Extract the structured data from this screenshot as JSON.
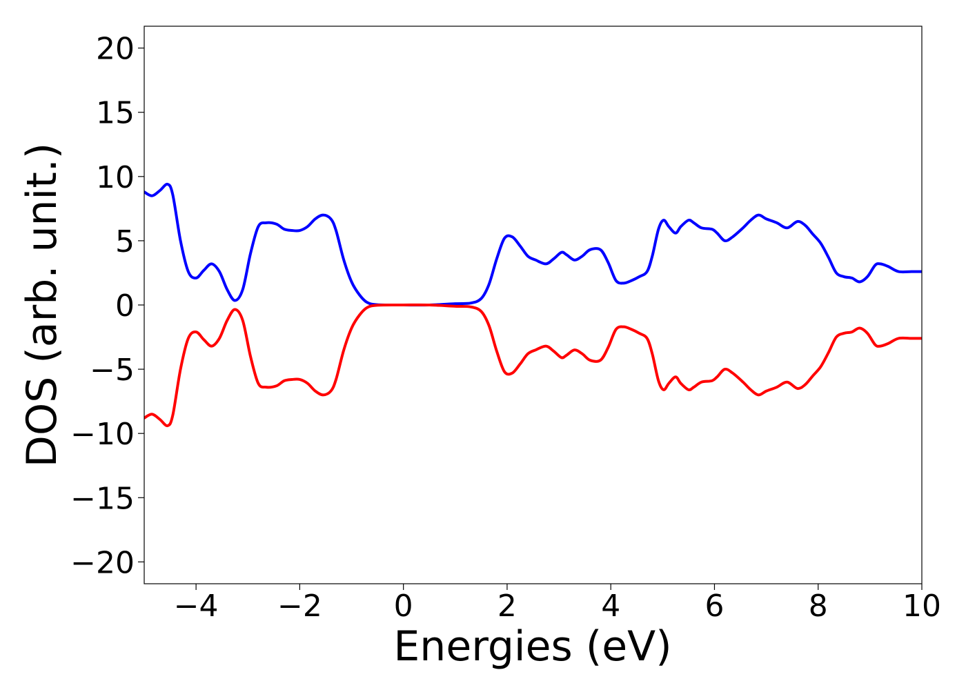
{
  "chart_data": {
    "type": "line",
    "title": "",
    "xlabel": "Energies (eV)",
    "ylabel": "DOS (arb. unit.)",
    "xlim": [
      -5,
      10
    ],
    "ylim": [
      -21.7,
      21.7
    ],
    "xticks": [
      -4,
      -2,
      0,
      2,
      4,
      6,
      8,
      10
    ],
    "yticks": [
      -20,
      -15,
      -10,
      -5,
      0,
      5,
      10,
      15,
      20
    ],
    "xtick_labels": [
      "−4",
      "−2",
      "0",
      "2",
      "4",
      "6",
      "8",
      "10"
    ],
    "ytick_labels": [
      "−20",
      "−15",
      "−10",
      "−5",
      "0",
      "5",
      "10",
      "15",
      "20"
    ],
    "grid": false,
    "legend": "none",
    "series": [
      {
        "color": "#0000ff",
        "points": [
          [
            -5.0,
            8.8
          ],
          [
            -4.85,
            8.5
          ],
          [
            -4.7,
            8.9
          ],
          [
            -4.55,
            9.4
          ],
          [
            -4.45,
            8.6
          ],
          [
            -4.3,
            5.0
          ],
          [
            -4.15,
            2.6
          ],
          [
            -4.0,
            2.1
          ],
          [
            -3.85,
            2.7
          ],
          [
            -3.7,
            3.2
          ],
          [
            -3.55,
            2.6
          ],
          [
            -3.4,
            1.2
          ],
          [
            -3.25,
            0.35
          ],
          [
            -3.1,
            1.2
          ],
          [
            -2.95,
            4.0
          ],
          [
            -2.8,
            6.1
          ],
          [
            -2.65,
            6.4
          ],
          [
            -2.45,
            6.3
          ],
          [
            -2.3,
            5.9
          ],
          [
            -2.15,
            5.8
          ],
          [
            -2.0,
            5.8
          ],
          [
            -1.85,
            6.1
          ],
          [
            -1.7,
            6.7
          ],
          [
            -1.55,
            7.0
          ],
          [
            -1.4,
            6.7
          ],
          [
            -1.3,
            5.8
          ],
          [
            -1.15,
            3.5
          ],
          [
            -1.0,
            1.8
          ],
          [
            -0.85,
            0.8
          ],
          [
            -0.7,
            0.2
          ],
          [
            -0.5,
            0.02
          ],
          [
            0.0,
            0.0
          ],
          [
            0.5,
            0.0
          ],
          [
            1.0,
            0.1
          ],
          [
            1.3,
            0.15
          ],
          [
            1.5,
            0.5
          ],
          [
            1.65,
            1.6
          ],
          [
            1.8,
            3.6
          ],
          [
            1.95,
            5.2
          ],
          [
            2.1,
            5.3
          ],
          [
            2.25,
            4.6
          ],
          [
            2.4,
            3.8
          ],
          [
            2.55,
            3.5
          ],
          [
            2.75,
            3.2
          ],
          [
            2.9,
            3.6
          ],
          [
            3.05,
            4.1
          ],
          [
            3.15,
            3.9
          ],
          [
            3.3,
            3.5
          ],
          [
            3.45,
            3.8
          ],
          [
            3.6,
            4.3
          ],
          [
            3.8,
            4.3
          ],
          [
            3.95,
            3.3
          ],
          [
            4.1,
            1.9
          ],
          [
            4.25,
            1.7
          ],
          [
            4.4,
            1.9
          ],
          [
            4.55,
            2.2
          ],
          [
            4.7,
            2.6
          ],
          [
            4.8,
            3.8
          ],
          [
            4.92,
            5.9
          ],
          [
            5.02,
            6.6
          ],
          [
            5.12,
            6.1
          ],
          [
            5.25,
            5.6
          ],
          [
            5.35,
            6.1
          ],
          [
            5.5,
            6.6
          ],
          [
            5.6,
            6.4
          ],
          [
            5.75,
            6.0
          ],
          [
            5.95,
            5.9
          ],
          [
            6.05,
            5.6
          ],
          [
            6.2,
            5.0
          ],
          [
            6.35,
            5.3
          ],
          [
            6.55,
            6.0
          ],
          [
            6.7,
            6.6
          ],
          [
            6.85,
            7.0
          ],
          [
            7.0,
            6.7
          ],
          [
            7.2,
            6.4
          ],
          [
            7.4,
            6.0
          ],
          [
            7.6,
            6.5
          ],
          [
            7.75,
            6.2
          ],
          [
            7.9,
            5.5
          ],
          [
            8.05,
            4.8
          ],
          [
            8.2,
            3.7
          ],
          [
            8.35,
            2.5
          ],
          [
            8.5,
            2.2
          ],
          [
            8.65,
            2.1
          ],
          [
            8.8,
            1.8
          ],
          [
            8.95,
            2.2
          ],
          [
            9.1,
            3.1
          ],
          [
            9.2,
            3.2
          ],
          [
            9.35,
            3.0
          ],
          [
            9.55,
            2.6
          ],
          [
            9.8,
            2.6
          ],
          [
            10.0,
            2.6
          ]
        ]
      },
      {
        "color": "#ff0000",
        "points": [
          [
            -5.0,
            -8.8
          ],
          [
            -4.85,
            -8.5
          ],
          [
            -4.7,
            -8.9
          ],
          [
            -4.55,
            -9.4
          ],
          [
            -4.45,
            -8.6
          ],
          [
            -4.3,
            -5.0
          ],
          [
            -4.15,
            -2.6
          ],
          [
            -4.0,
            -2.1
          ],
          [
            -3.85,
            -2.7
          ],
          [
            -3.7,
            -3.2
          ],
          [
            -3.55,
            -2.6
          ],
          [
            -3.4,
            -1.2
          ],
          [
            -3.25,
            -0.35
          ],
          [
            -3.1,
            -1.2
          ],
          [
            -2.95,
            -4.0
          ],
          [
            -2.8,
            -6.1
          ],
          [
            -2.65,
            -6.4
          ],
          [
            -2.45,
            -6.3
          ],
          [
            -2.3,
            -5.9
          ],
          [
            -2.15,
            -5.8
          ],
          [
            -2.0,
            -5.8
          ],
          [
            -1.85,
            -6.1
          ],
          [
            -1.7,
            -6.7
          ],
          [
            -1.55,
            -7.0
          ],
          [
            -1.4,
            -6.7
          ],
          [
            -1.3,
            -5.8
          ],
          [
            -1.15,
            -3.5
          ],
          [
            -1.0,
            -1.8
          ],
          [
            -0.85,
            -0.8
          ],
          [
            -0.7,
            -0.2
          ],
          [
            -0.5,
            -0.02
          ],
          [
            0.0,
            0.0
          ],
          [
            0.5,
            0.0
          ],
          [
            1.0,
            -0.1
          ],
          [
            1.3,
            -0.15
          ],
          [
            1.5,
            -0.5
          ],
          [
            1.65,
            -1.6
          ],
          [
            1.8,
            -3.6
          ],
          [
            1.95,
            -5.2
          ],
          [
            2.1,
            -5.3
          ],
          [
            2.25,
            -4.6
          ],
          [
            2.4,
            -3.8
          ],
          [
            2.55,
            -3.5
          ],
          [
            2.75,
            -3.2
          ],
          [
            2.9,
            -3.6
          ],
          [
            3.05,
            -4.1
          ],
          [
            3.15,
            -3.9
          ],
          [
            3.3,
            -3.5
          ],
          [
            3.45,
            -3.8
          ],
          [
            3.6,
            -4.3
          ],
          [
            3.8,
            -4.3
          ],
          [
            3.95,
            -3.3
          ],
          [
            4.1,
            -1.9
          ],
          [
            4.25,
            -1.7
          ],
          [
            4.4,
            -1.9
          ],
          [
            4.55,
            -2.2
          ],
          [
            4.7,
            -2.6
          ],
          [
            4.8,
            -3.8
          ],
          [
            4.92,
            -5.9
          ],
          [
            5.02,
            -6.6
          ],
          [
            5.12,
            -6.1
          ],
          [
            5.25,
            -5.6
          ],
          [
            5.35,
            -6.1
          ],
          [
            5.5,
            -6.6
          ],
          [
            5.6,
            -6.4
          ],
          [
            5.75,
            -6.0
          ],
          [
            5.95,
            -5.9
          ],
          [
            6.05,
            -5.6
          ],
          [
            6.2,
            -5.0
          ],
          [
            6.35,
            -5.3
          ],
          [
            6.55,
            -6.0
          ],
          [
            6.7,
            -6.6
          ],
          [
            6.85,
            -7.0
          ],
          [
            7.0,
            -6.7
          ],
          [
            7.2,
            -6.4
          ],
          [
            7.4,
            -6.0
          ],
          [
            7.6,
            -6.5
          ],
          [
            7.75,
            -6.2
          ],
          [
            7.9,
            -5.5
          ],
          [
            8.05,
            -4.8
          ],
          [
            8.2,
            -3.7
          ],
          [
            8.35,
            -2.5
          ],
          [
            8.5,
            -2.2
          ],
          [
            8.65,
            -2.1
          ],
          [
            8.8,
            -1.8
          ],
          [
            8.95,
            -2.2
          ],
          [
            9.1,
            -3.1
          ],
          [
            9.2,
            -3.2
          ],
          [
            9.35,
            -3.0
          ],
          [
            9.55,
            -2.6
          ],
          [
            9.8,
            -2.6
          ],
          [
            10.0,
            -2.6
          ]
        ]
      }
    ]
  }
}
